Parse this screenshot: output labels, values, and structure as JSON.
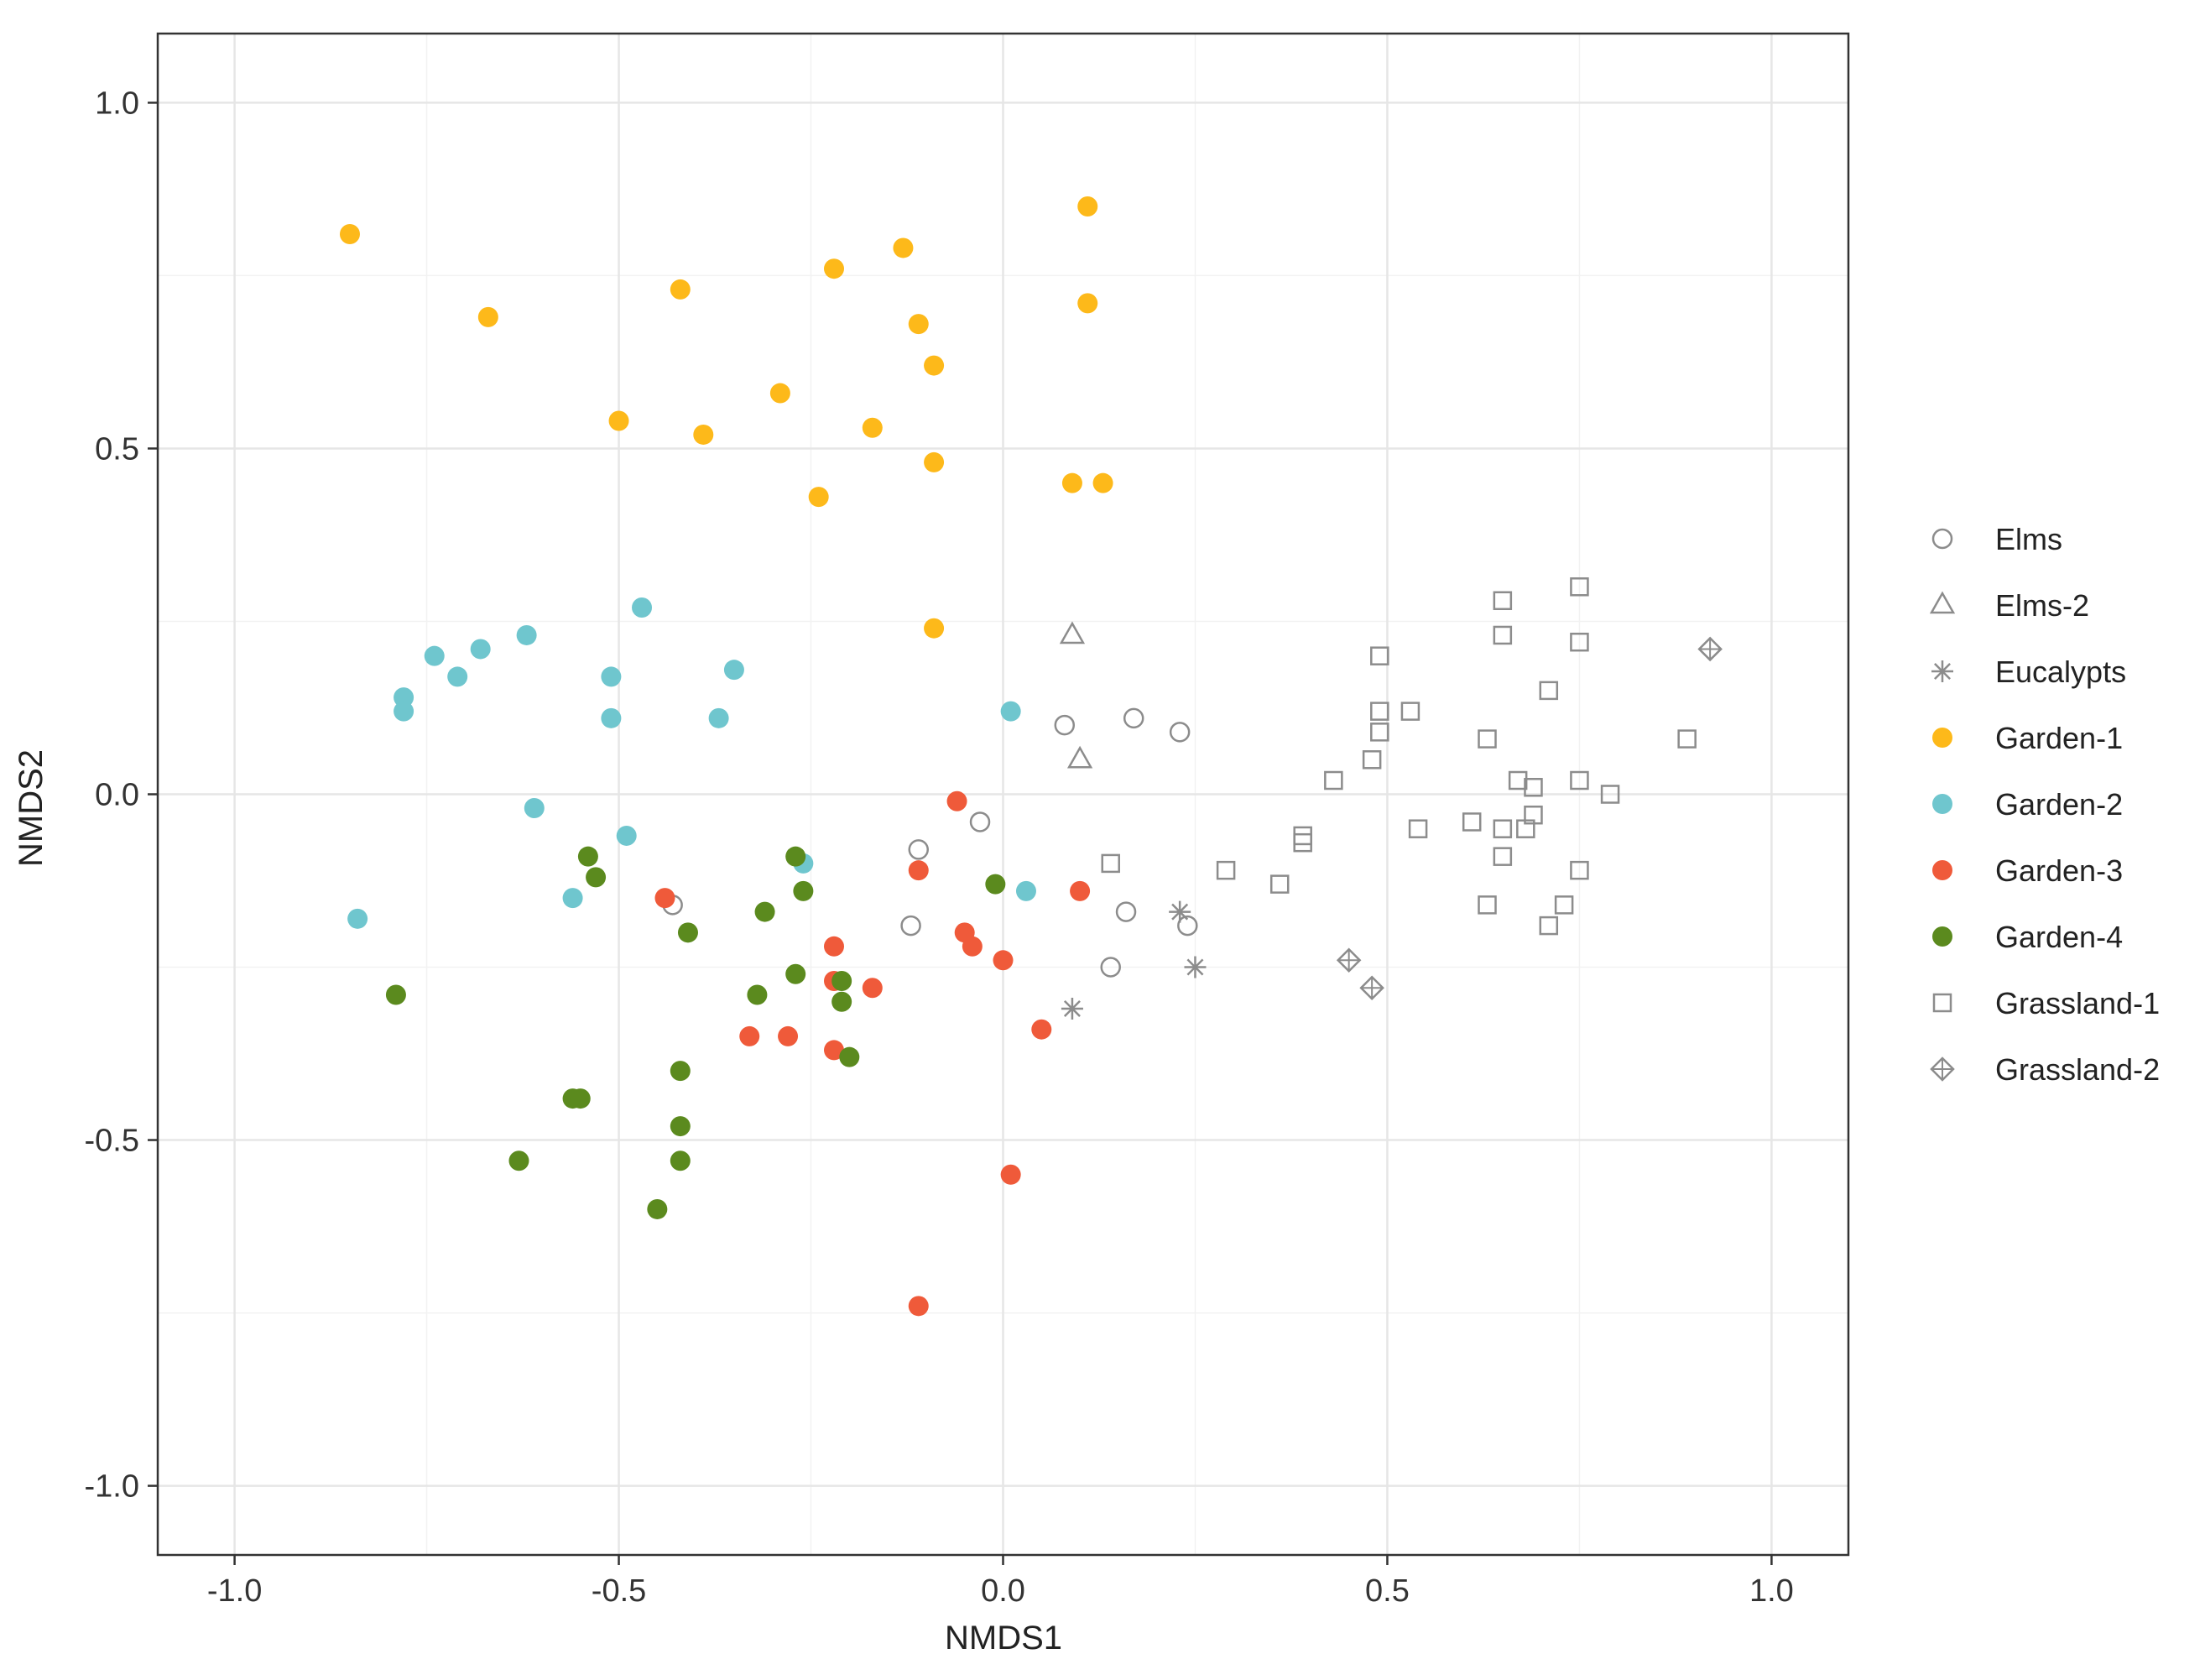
{
  "chart_data": {
    "type": "scatter",
    "xlabel": "NMDS1",
    "ylabel": "NMDS2",
    "xlim": [
      -1.1,
      1.1
    ],
    "ylim": [
      -1.1,
      1.1
    ],
    "xticks": [
      -1.0,
      -0.5,
      0.0,
      0.5,
      1.0
    ],
    "yticks": [
      -1.0,
      -0.5,
      0.0,
      0.5,
      1.0
    ],
    "xtick_labels": [
      "-1.0",
      "-0.5",
      "0.0",
      "0.5",
      "1.0"
    ],
    "ytick_labels": [
      "-1.0",
      "-0.5",
      "0.0",
      "0.5",
      "1.0"
    ],
    "grid": true,
    "legend_position": "right",
    "series": [
      {
        "name": "Elms",
        "marker": "open-circle",
        "color": "#8c8c8c",
        "points": [
          [
            0.08,
            0.1
          ],
          [
            0.17,
            0.11
          ],
          [
            0.23,
            0.09
          ],
          [
            -0.03,
            -0.04
          ],
          [
            -0.11,
            -0.08
          ],
          [
            -0.43,
            -0.16
          ],
          [
            -0.12,
            -0.19
          ],
          [
            0.16,
            -0.17
          ],
          [
            0.24,
            -0.19
          ],
          [
            0.14,
            -0.25
          ]
        ]
      },
      {
        "name": "Elms-2",
        "marker": "open-triangle",
        "color": "#8c8c8c",
        "points": [
          [
            0.09,
            0.23
          ],
          [
            0.1,
            0.05
          ]
        ]
      },
      {
        "name": "Eucalypts",
        "marker": "asterisk",
        "color": "#8c8c8c",
        "points": [
          [
            0.23,
            -0.17
          ],
          [
            0.25,
            -0.25
          ],
          [
            0.09,
            -0.31
          ]
        ]
      },
      {
        "name": "Garden-1",
        "marker": "filled-circle",
        "color": "#fdb91a",
        "points": [
          [
            -0.85,
            0.81
          ],
          [
            -0.67,
            0.69
          ],
          [
            -0.42,
            0.73
          ],
          [
            -0.22,
            0.76
          ],
          [
            -0.13,
            0.79
          ],
          [
            0.11,
            0.85
          ],
          [
            0.11,
            0.71
          ],
          [
            -0.11,
            0.68
          ],
          [
            -0.09,
            0.62
          ],
          [
            -0.29,
            0.58
          ],
          [
            -0.5,
            0.54
          ],
          [
            -0.39,
            0.52
          ],
          [
            -0.17,
            0.53
          ],
          [
            -0.09,
            0.48
          ],
          [
            -0.24,
            0.43
          ],
          [
            0.09,
            0.45
          ],
          [
            0.13,
            0.45
          ],
          [
            -0.09,
            0.24
          ]
        ]
      },
      {
        "name": "Garden-2",
        "marker": "filled-circle",
        "color": "#6fc6ce",
        "points": [
          [
            -0.47,
            0.27
          ],
          [
            -0.62,
            0.23
          ],
          [
            -0.74,
            0.2
          ],
          [
            -0.68,
            0.21
          ],
          [
            -0.71,
            0.17
          ],
          [
            -0.78,
            0.14
          ],
          [
            -0.78,
            0.12
          ],
          [
            -0.51,
            0.17
          ],
          [
            -0.35,
            0.18
          ],
          [
            -0.51,
            0.11
          ],
          [
            -0.37,
            0.11
          ],
          [
            0.01,
            0.12
          ],
          [
            -0.61,
            -0.02
          ],
          [
            -0.49,
            -0.06
          ],
          [
            -0.26,
            -0.1
          ],
          [
            -0.56,
            -0.15
          ],
          [
            -0.84,
            -0.18
          ],
          [
            0.03,
            -0.14
          ]
        ]
      },
      {
        "name": "Garden-3",
        "marker": "filled-circle",
        "color": "#ef5a3a",
        "points": [
          [
            -0.06,
            -0.01
          ],
          [
            -0.11,
            -0.11
          ],
          [
            -0.44,
            -0.15
          ],
          [
            0.1,
            -0.14
          ],
          [
            -0.05,
            -0.2
          ],
          [
            -0.04,
            -0.22
          ],
          [
            -0.22,
            -0.22
          ],
          [
            0.0,
            -0.24
          ],
          [
            -0.22,
            -0.27
          ],
          [
            -0.17,
            -0.28
          ],
          [
            -0.33,
            -0.35
          ],
          [
            -0.28,
            -0.35
          ],
          [
            -0.22,
            -0.37
          ],
          [
            0.05,
            -0.34
          ],
          [
            0.01,
            -0.55
          ],
          [
            -0.11,
            -0.74
          ]
        ]
      },
      {
        "name": "Garden-4",
        "marker": "filled-circle",
        "color": "#5b8a1e",
        "points": [
          [
            -0.54,
            -0.09
          ],
          [
            -0.53,
            -0.12
          ],
          [
            -0.27,
            -0.09
          ],
          [
            -0.26,
            -0.14
          ],
          [
            -0.41,
            -0.2
          ],
          [
            -0.31,
            -0.17
          ],
          [
            -0.01,
            -0.13
          ],
          [
            -0.79,
            -0.29
          ],
          [
            -0.27,
            -0.26
          ],
          [
            -0.32,
            -0.29
          ],
          [
            -0.21,
            -0.27
          ],
          [
            -0.21,
            -0.3
          ],
          [
            -0.42,
            -0.4
          ],
          [
            -0.2,
            -0.38
          ],
          [
            -0.56,
            -0.44
          ],
          [
            -0.55,
            -0.44
          ],
          [
            -0.42,
            -0.48
          ],
          [
            -0.63,
            -0.53
          ],
          [
            -0.42,
            -0.53
          ],
          [
            -0.45,
            -0.6
          ]
        ]
      },
      {
        "name": "Grassland-1",
        "marker": "open-square",
        "color": "#8c8c8c",
        "points": [
          [
            0.75,
            0.3
          ],
          [
            0.65,
            0.28
          ],
          [
            0.65,
            0.23
          ],
          [
            0.75,
            0.22
          ],
          [
            0.49,
            0.2
          ],
          [
            0.71,
            0.15
          ],
          [
            0.49,
            0.12
          ],
          [
            0.53,
            0.12
          ],
          [
            0.49,
            0.09
          ],
          [
            0.63,
            0.08
          ],
          [
            0.89,
            0.08
          ],
          [
            0.48,
            0.05
          ],
          [
            0.43,
            0.02
          ],
          [
            0.67,
            0.02
          ],
          [
            0.75,
            0.02
          ],
          [
            0.69,
            0.01
          ],
          [
            0.79,
            0.0
          ],
          [
            0.69,
            -0.03
          ],
          [
            0.61,
            -0.04
          ],
          [
            0.54,
            -0.05
          ],
          [
            0.65,
            -0.05
          ],
          [
            0.68,
            -0.05
          ],
          [
            0.39,
            -0.06
          ],
          [
            0.39,
            -0.07
          ],
          [
            0.65,
            -0.09
          ],
          [
            0.14,
            -0.1
          ],
          [
            0.29,
            -0.11
          ],
          [
            0.75,
            -0.11
          ],
          [
            0.36,
            -0.13
          ],
          [
            0.63,
            -0.16
          ],
          [
            0.73,
            -0.16
          ],
          [
            0.71,
            -0.19
          ]
        ]
      },
      {
        "name": "Grassland-2",
        "marker": "crossed-diamond",
        "color": "#8c8c8c",
        "points": [
          [
            0.92,
            0.21
          ],
          [
            0.45,
            -0.24
          ],
          [
            0.48,
            -0.28
          ]
        ]
      }
    ]
  }
}
